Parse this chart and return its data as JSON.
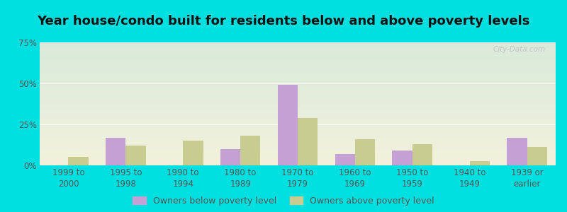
{
  "title": "Year house/condo built for residents below and above poverty levels",
  "categories": [
    "1999 to\n2000",
    "1995 to\n1998",
    "1990 to\n1994",
    "1980 to\n1989",
    "1970 to\n1979",
    "1960 to\n1969",
    "1950 to\n1959",
    "1940 to\n1949",
    "1939 or\nearlier"
  ],
  "below_poverty": [
    0.0,
    17.0,
    0.0,
    10.0,
    49.0,
    7.0,
    9.0,
    0.0,
    17.0
  ],
  "above_poverty": [
    5.0,
    12.0,
    15.0,
    18.0,
    29.0,
    16.0,
    13.0,
    2.5,
    11.0
  ],
  "below_color": "#c4a0d4",
  "above_color": "#c8cc90",
  "ylim": [
    0,
    75
  ],
  "yticks": [
    0,
    25,
    50,
    75
  ],
  "ytick_labels": [
    "0%",
    "25%",
    "50%",
    "75%"
  ],
  "bar_width": 0.35,
  "legend_below": "Owners below poverty level",
  "legend_above": "Owners above poverty level",
  "bg_top_color": "#daeada",
  "bg_bottom_color": "#f2f2dc",
  "outer_background": "#00e0e0",
  "title_fontsize": 13,
  "tick_fontsize": 8.5,
  "legend_fontsize": 9,
  "watermark": "City-Data.com"
}
